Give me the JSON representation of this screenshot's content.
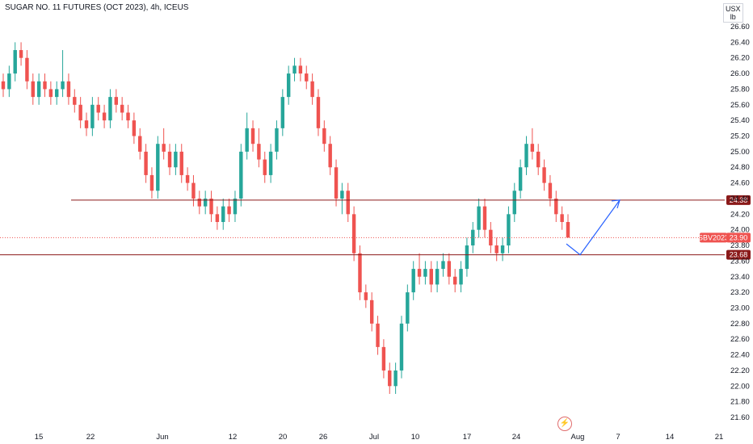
{
  "header": {
    "title": "SUGAR NO. 11 FUTURES (OCT 2023), 4h, ICEUS"
  },
  "currency": {
    "line1": "USX",
    "line2": "lb"
  },
  "colors": {
    "up": "#26a69a",
    "down": "#ef5350",
    "level": "#8b1a1a",
    "arrow": "#2962ff"
  },
  "icons": {
    "logo": "tradingview-bolt-icon"
  },
  "chart_data": {
    "type": "candlestick",
    "ylim": [
      21.5,
      26.7
    ],
    "y_ticks": [
      "26.60",
      "26.40",
      "26.20",
      "26.00",
      "25.80",
      "25.60",
      "25.40",
      "25.20",
      "25.00",
      "24.80",
      "24.60",
      "24.40",
      "24.20",
      "24.00",
      "23.80",
      "23.60",
      "23.40",
      "23.20",
      "23.00",
      "22.80",
      "22.60",
      "22.40",
      "22.20",
      "22.00",
      "21.80",
      "21.60"
    ],
    "x_ticks": [
      "15",
      "22",
      "Jun",
      "12",
      "20",
      "26",
      "Jul",
      "10",
      "17",
      "24",
      "Aug",
      "7",
      "14",
      "21"
    ],
    "levels": [
      {
        "label": "24.38",
        "value": 24.38
      },
      {
        "label": "23.68",
        "value": 23.68
      }
    ],
    "last_price": {
      "symbol": "SBV2023",
      "value": "23.90"
    },
    "projection": [
      [
        23.82,
        23.68
      ],
      [
        24.38
      ]
    ],
    "candles": [
      [
        25.9,
        26.0,
        25.7,
        25.8
      ],
      [
        25.8,
        26.1,
        25.7,
        26.0
      ],
      [
        26.0,
        26.4,
        25.9,
        26.3
      ],
      [
        26.3,
        26.4,
        26.1,
        26.2
      ],
      [
        26.2,
        26.3,
        25.8,
        25.9
      ],
      [
        25.9,
        26.0,
        25.6,
        25.7
      ],
      [
        25.7,
        26.0,
        25.6,
        25.9
      ],
      [
        25.9,
        26.0,
        25.7,
        25.8
      ],
      [
        25.8,
        25.9,
        25.6,
        25.7
      ],
      [
        25.7,
        25.9,
        25.6,
        25.8
      ],
      [
        25.8,
        26.3,
        25.7,
        25.9
      ],
      [
        25.9,
        26.0,
        25.6,
        25.7
      ],
      [
        25.7,
        25.8,
        25.5,
        25.6
      ],
      [
        25.6,
        25.7,
        25.3,
        25.4
      ],
      [
        25.4,
        25.5,
        25.2,
        25.3
      ],
      [
        25.3,
        25.7,
        25.2,
        25.6
      ],
      [
        25.6,
        25.7,
        25.4,
        25.5
      ],
      [
        25.5,
        25.6,
        25.3,
        25.4
      ],
      [
        25.4,
        25.8,
        25.3,
        25.7
      ],
      [
        25.7,
        25.8,
        25.5,
        25.6
      ],
      [
        25.6,
        25.7,
        25.4,
        25.5
      ],
      [
        25.5,
        25.6,
        25.3,
        25.4
      ],
      [
        25.4,
        25.5,
        25.1,
        25.2
      ],
      [
        25.2,
        25.3,
        24.9,
        25.0
      ],
      [
        25.0,
        25.1,
        24.6,
        24.7
      ],
      [
        24.7,
        24.8,
        24.4,
        24.5
      ],
      [
        24.5,
        25.2,
        24.4,
        25.1
      ],
      [
        25.1,
        25.3,
        24.9,
        25.0
      ],
      [
        25.0,
        25.1,
        24.7,
        24.8
      ],
      [
        24.8,
        25.1,
        24.7,
        25.0
      ],
      [
        25.0,
        25.1,
        24.6,
        24.7
      ],
      [
        24.7,
        24.8,
        24.5,
        24.6
      ],
      [
        24.6,
        24.7,
        24.3,
        24.4
      ],
      [
        24.4,
        24.5,
        24.2,
        24.3
      ],
      [
        24.3,
        24.5,
        24.2,
        24.4
      ],
      [
        24.4,
        24.5,
        24.1,
        24.2
      ],
      [
        24.2,
        24.3,
        24.0,
        24.1
      ],
      [
        24.1,
        24.4,
        24.0,
        24.3
      ],
      [
        24.3,
        24.4,
        24.1,
        24.2
      ],
      [
        24.2,
        24.5,
        24.1,
        24.4
      ],
      [
        24.4,
        25.1,
        24.3,
        25.0
      ],
      [
        25.0,
        25.5,
        24.9,
        25.3
      ],
      [
        25.3,
        25.4,
        25.0,
        25.1
      ],
      [
        25.1,
        25.3,
        24.8,
        24.9
      ],
      [
        24.9,
        25.0,
        24.6,
        24.7
      ],
      [
        24.7,
        25.1,
        24.6,
        25.0
      ],
      [
        25.0,
        25.4,
        24.9,
        25.3
      ],
      [
        25.3,
        25.8,
        25.2,
        25.7
      ],
      [
        25.7,
        26.1,
        25.6,
        26.0
      ],
      [
        26.0,
        26.2,
        25.9,
        26.1
      ],
      [
        26.1,
        26.2,
        25.9,
        26.0
      ],
      [
        26.0,
        26.1,
        25.8,
        25.9
      ],
      [
        25.9,
        26.0,
        25.6,
        25.7
      ],
      [
        25.7,
        25.8,
        25.2,
        25.3
      ],
      [
        25.3,
        25.4,
        25.0,
        25.1
      ],
      [
        25.1,
        25.2,
        24.7,
        24.8
      ],
      [
        24.8,
        24.9,
        24.3,
        24.4
      ],
      [
        24.4,
        24.6,
        24.2,
        24.5
      ],
      [
        24.5,
        24.6,
        24.1,
        24.2
      ],
      [
        24.2,
        24.3,
        23.6,
        23.7
      ],
      [
        23.7,
        23.8,
        23.1,
        23.2
      ],
      [
        23.2,
        23.3,
        23.0,
        23.1
      ],
      [
        23.1,
        23.2,
        22.7,
        22.8
      ],
      [
        22.8,
        22.9,
        22.4,
        22.5
      ],
      [
        22.5,
        22.6,
        22.1,
        22.2
      ],
      [
        22.2,
        22.3,
        21.9,
        22.0
      ],
      [
        22.0,
        22.3,
        21.9,
        22.2
      ],
      [
        22.2,
        22.9,
        22.1,
        22.8
      ],
      [
        22.8,
        23.3,
        22.7,
        23.2
      ],
      [
        23.2,
        23.6,
        23.1,
        23.5
      ],
      [
        23.5,
        23.7,
        23.3,
        23.4
      ],
      [
        23.4,
        23.6,
        23.3,
        23.5
      ],
      [
        23.5,
        23.6,
        23.2,
        23.3
      ],
      [
        23.3,
        23.6,
        23.2,
        23.5
      ],
      [
        23.5,
        23.7,
        23.4,
        23.6
      ],
      [
        23.6,
        23.7,
        23.3,
        23.4
      ],
      [
        23.4,
        23.5,
        23.2,
        23.3
      ],
      [
        23.3,
        23.6,
        23.2,
        23.5
      ],
      [
        23.5,
        23.9,
        23.4,
        23.8
      ],
      [
        23.8,
        24.1,
        23.7,
        24.0
      ],
      [
        24.0,
        24.4,
        23.9,
        24.3
      ],
      [
        24.3,
        24.4,
        23.9,
        24.0
      ],
      [
        24.0,
        24.1,
        23.7,
        23.8
      ],
      [
        23.8,
        23.9,
        23.6,
        23.7
      ],
      [
        23.7,
        23.9,
        23.6,
        23.8
      ],
      [
        23.8,
        24.3,
        23.7,
        24.2
      ],
      [
        24.2,
        24.6,
        24.1,
        24.5
      ],
      [
        24.5,
        24.9,
        24.4,
        24.8
      ],
      [
        24.8,
        25.2,
        24.7,
        25.1
      ],
      [
        25.1,
        25.3,
        24.9,
        25.0
      ],
      [
        25.0,
        25.1,
        24.7,
        24.8
      ],
      [
        24.8,
        24.9,
        24.5,
        24.6
      ],
      [
        24.6,
        24.7,
        24.3,
        24.4
      ],
      [
        24.4,
        24.5,
        24.1,
        24.2
      ],
      [
        24.2,
        24.3,
        24.0,
        24.1
      ],
      [
        24.1,
        24.2,
        23.9,
        23.9
      ]
    ]
  }
}
